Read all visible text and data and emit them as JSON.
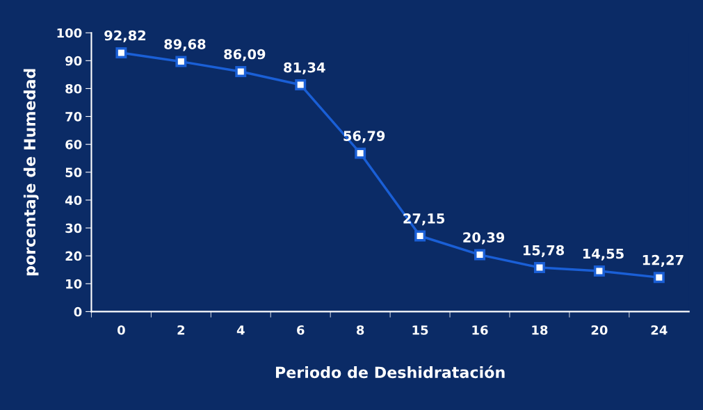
{
  "chart_data": {
    "type": "line",
    "xlabel": "Periodo de Deshidratación",
    "ylabel": "porcentaje de Humedad",
    "categories": [
      "0",
      "2",
      "4",
      "6",
      "8",
      "15",
      "16",
      "18",
      "20",
      "24"
    ],
    "series": [
      {
        "color": "#1a5fd6",
        "values": [
          92.82,
          89.68,
          86.09,
          81.34,
          56.79,
          27.15,
          20.39,
          15.78,
          14.55,
          12.27
        ],
        "value_labels": [
          "92,82",
          "89,68",
          "86,09",
          "81,34",
          "56,79",
          "27,15",
          "20,39",
          "15,78",
          "14,55",
          "12,27"
        ]
      }
    ],
    "ylim": [
      0,
      100
    ],
    "yticks": [
      0,
      10,
      20,
      30,
      40,
      50,
      60,
      70,
      80,
      90,
      100
    ],
    "grid": false,
    "legend": false,
    "marker": "square",
    "line_style": "solid"
  }
}
